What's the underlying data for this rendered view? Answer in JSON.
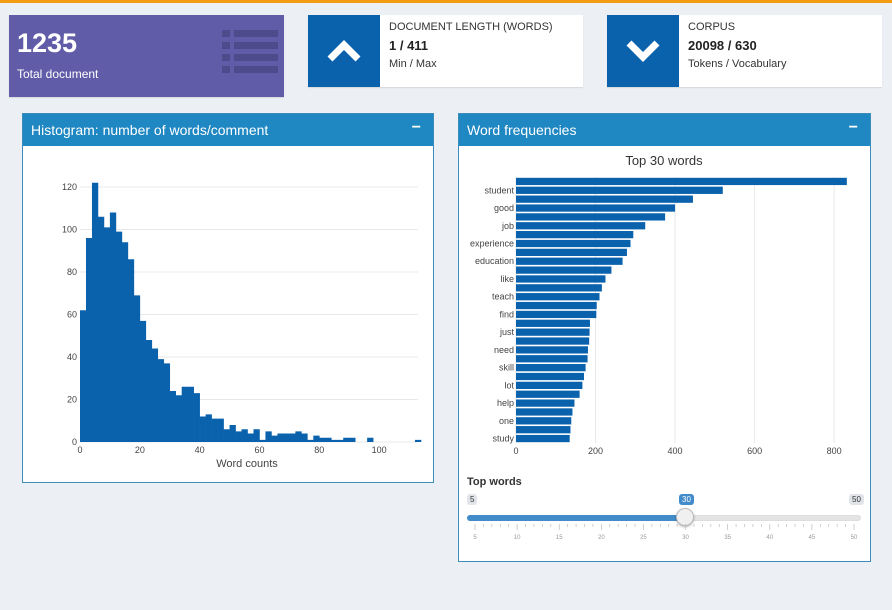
{
  "colors": {
    "accent": "#f39c12",
    "purple": "#605ca8",
    "blue": "#0a62ad",
    "bar": "#0a62ad",
    "header": "#1f87c2"
  },
  "value_box": {
    "value": "1235",
    "label": "Total document",
    "icon": "list-icon"
  },
  "info_boxes": [
    {
      "title": "DOCUMENT LENGTH (WORDS)",
      "value": "1 / 411",
      "subtitle": "Min / Max",
      "icon": "chevron-up-icon"
    },
    {
      "title": "CORPUS",
      "value": "20098 / 630",
      "subtitle": "Tokens / Vocabulary",
      "icon": "chevron-down-icon"
    }
  ],
  "panels": {
    "histogram": {
      "title": "Histogram: number of words/comment",
      "collapse": "−"
    },
    "frequencies": {
      "title": "Word frequencies",
      "collapse": "−"
    }
  },
  "chart_data": [
    {
      "type": "bar",
      "subtype": "histogram",
      "xlabel": "Word counts",
      "ylabel": "",
      "xlim": [
        0,
        113
      ],
      "ylim": [
        0,
        120
      ],
      "xticks": [
        0,
        20,
        40,
        60,
        80,
        100
      ],
      "yticks": [
        0,
        20,
        40,
        60,
        80,
        100,
        120
      ],
      "grid": true,
      "bin_width": 2,
      "x": [
        0,
        2,
        4,
        6,
        8,
        10,
        12,
        14,
        16,
        18,
        20,
        22,
        24,
        26,
        28,
        30,
        32,
        34,
        36,
        38,
        40,
        42,
        44,
        46,
        48,
        50,
        52,
        54,
        56,
        58,
        60,
        62,
        64,
        66,
        68,
        70,
        72,
        74,
        76,
        78,
        80,
        82,
        84,
        86,
        88,
        90,
        92,
        94,
        96,
        98,
        100,
        102,
        104,
        106,
        108,
        110,
        112
      ],
      "values": [
        62,
        96,
        122,
        106,
        101,
        108,
        99,
        94,
        86,
        69,
        57,
        48,
        44,
        39,
        37,
        24,
        22,
        26,
        26,
        23,
        12,
        13,
        11,
        11,
        6,
        8,
        5,
        6,
        4,
        6,
        1,
        5,
        3,
        4,
        4,
        4,
        5,
        4,
        1,
        3,
        2,
        2,
        1,
        1,
        2,
        2,
        0,
        0,
        2,
        0,
        0,
        0,
        0,
        0,
        0,
        0,
        1
      ]
    },
    {
      "type": "bar",
      "orientation": "horizontal",
      "title": "Top 30 words",
      "xlim": [
        0,
        850
      ],
      "xticks": [
        0,
        200,
        400,
        600,
        800
      ],
      "grid": true,
      "categories": [
        "",
        "student",
        "",
        "good",
        "",
        "job",
        "",
        "experience",
        "",
        "education",
        "",
        "like",
        "",
        "teach",
        "",
        "find",
        "",
        "just",
        "",
        "need",
        "",
        "skill",
        "",
        "lot",
        "",
        "help",
        "",
        "one",
        "",
        "study"
      ],
      "values": [
        832,
        520,
        445,
        400,
        375,
        325,
        295,
        288,
        279,
        268,
        240,
        225,
        216,
        210,
        203,
        202,
        186,
        185,
        184,
        181,
        180,
        175,
        171,
        167,
        160,
        147,
        142,
        139,
        137,
        135
      ]
    }
  ],
  "slider": {
    "label": "Top words",
    "min_label": "5",
    "max_label": "50",
    "current_label": "30",
    "min": 5,
    "max": 50,
    "value": 30,
    "ticks": [
      "5",
      "10",
      "15",
      "20",
      "25",
      "30",
      "35",
      "40",
      "45",
      "50"
    ]
  }
}
